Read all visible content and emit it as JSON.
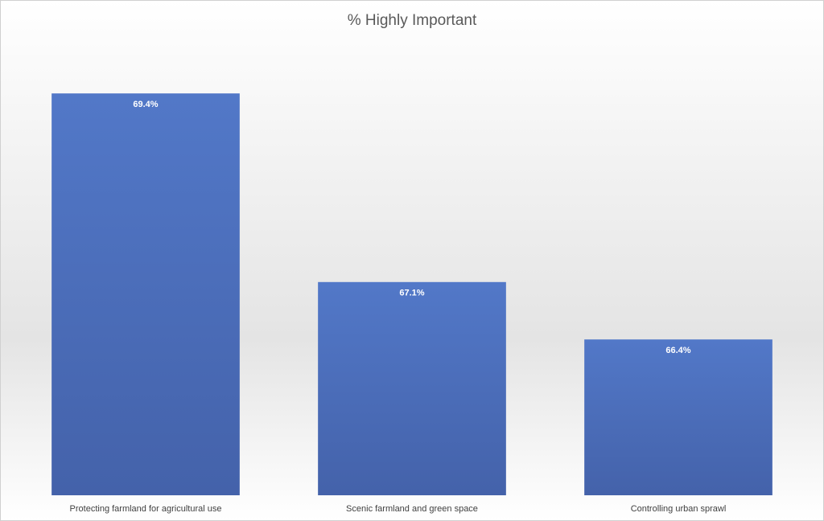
{
  "chart_data": {
    "type": "bar",
    "title": "% Highly Important",
    "categories": [
      "Protecting farmland for agricultural use",
      "Scenic farmland and green space",
      "Controlling urban sprawl"
    ],
    "values": [
      69.4,
      67.1,
      66.4
    ],
    "value_labels": [
      "69.4%",
      "67.1%",
      "66.4%"
    ],
    "color": "#4472c4",
    "ylim": [
      64.5,
      70
    ]
  }
}
